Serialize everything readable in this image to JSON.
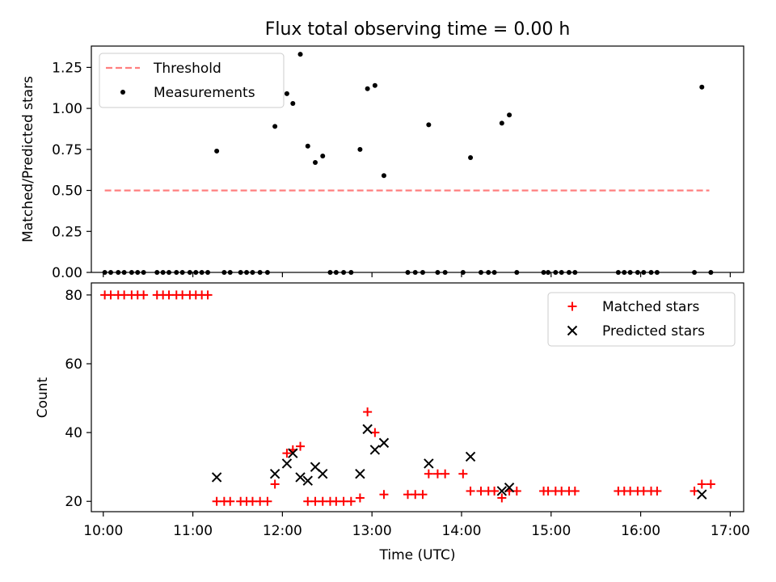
{
  "chart_data": [
    {
      "type": "scatter",
      "title": "Flux total observing time = 0.00 h",
      "xlabel": "",
      "ylabel": "Matched/Predicted stars",
      "xlim": [
        "09:52",
        "17:09"
      ],
      "ylim": [
        0,
        1.38
      ],
      "yticks": [
        0,
        0.25,
        0.5,
        0.75,
        1.0,
        1.25
      ],
      "ytick_labels": [
        "0.00",
        "0.25",
        "0.50",
        "0.75",
        "1.00",
        "1.25"
      ],
      "xticks": [
        "10:00",
        "11:00",
        "12:00",
        "13:00",
        "14:00",
        "15:00",
        "16:00",
        "17:00"
      ],
      "xtick_labels_shown": false,
      "grid": false,
      "legend": "top-left",
      "series": [
        {
          "name": "Threshold",
          "style": "dashed-line",
          "color": "#ff7f7f",
          "points": [
            [
              "10:01",
              0.5
            ],
            [
              "16:46",
              0.5
            ]
          ]
        },
        {
          "name": "Measurements",
          "style": "dot",
          "color": "#000000",
          "points": [
            [
              "10:01",
              0
            ],
            [
              "10:05",
              0
            ],
            [
              "10:10",
              0
            ],
            [
              "10:14",
              0
            ],
            [
              "10:19",
              0
            ],
            [
              "10:23",
              0
            ],
            [
              "10:27",
              0
            ],
            [
              "10:36",
              0
            ],
            [
              "10:40",
              0
            ],
            [
              "10:44",
              0
            ],
            [
              "10:49",
              0
            ],
            [
              "10:53",
              0
            ],
            [
              "10:58",
              0
            ],
            [
              "11:02",
              0
            ],
            [
              "11:06",
              0
            ],
            [
              "11:10",
              0
            ],
            [
              "11:16",
              0.74
            ],
            [
              "11:21",
              0
            ],
            [
              "11:25",
              0
            ],
            [
              "11:32",
              0
            ],
            [
              "11:36",
              0
            ],
            [
              "11:40",
              0
            ],
            [
              "11:45",
              0
            ],
            [
              "11:50",
              0
            ],
            [
              "11:55",
              0.89
            ],
            [
              "12:03",
              1.09
            ],
            [
              "12:07",
              1.03
            ],
            [
              "12:12",
              1.33
            ],
            [
              "12:17",
              0.77
            ],
            [
              "12:22",
              0.67
            ],
            [
              "12:27",
              0.71
            ],
            [
              "12:32",
              0
            ],
            [
              "12:36",
              0
            ],
            [
              "12:41",
              0
            ],
            [
              "12:46",
              0
            ],
            [
              "12:52",
              0.75
            ],
            [
              "12:57",
              1.12
            ],
            [
              "13:02",
              1.14
            ],
            [
              "13:08",
              0.59
            ],
            [
              "13:24",
              0
            ],
            [
              "13:29",
              0
            ],
            [
              "13:34",
              0
            ],
            [
              "13:38",
              0.9
            ],
            [
              "13:44",
              0
            ],
            [
              "13:49",
              0
            ],
            [
              "14:01",
              0
            ],
            [
              "14:06",
              0.7
            ],
            [
              "14:13",
              0
            ],
            [
              "14:18",
              0
            ],
            [
              "14:22",
              0
            ],
            [
              "14:27",
              0.91
            ],
            [
              "14:32",
              0.96
            ],
            [
              "14:37",
              0
            ],
            [
              "14:55",
              0
            ],
            [
              "14:58",
              0
            ],
            [
              "15:03",
              0
            ],
            [
              "15:07",
              0
            ],
            [
              "15:12",
              0
            ],
            [
              "15:16",
              0
            ],
            [
              "15:45",
              0
            ],
            [
              "15:49",
              0
            ],
            [
              "15:53",
              0
            ],
            [
              "15:58",
              0
            ],
            [
              "16:02",
              0
            ],
            [
              "16:07",
              0
            ],
            [
              "16:11",
              0
            ],
            [
              "16:36",
              0
            ],
            [
              "16:41",
              1.13
            ],
            [
              "16:47",
              0
            ]
          ]
        }
      ]
    },
    {
      "type": "scatter",
      "title": "",
      "xlabel": "Time (UTC)",
      "ylabel": "Count",
      "xlim": [
        "09:52",
        "17:09"
      ],
      "ylim": [
        17,
        83.5
      ],
      "yticks": [
        20,
        40,
        60,
        80
      ],
      "ytick_labels": [
        "20",
        "40",
        "60",
        "80"
      ],
      "xticks": [
        "10:00",
        "11:00",
        "12:00",
        "13:00",
        "14:00",
        "15:00",
        "16:00",
        "17:00"
      ],
      "xtick_labels": [
        "10:00",
        "11:00",
        "12:00",
        "13:00",
        "14:00",
        "15:00",
        "16:00",
        "17:00"
      ],
      "grid": false,
      "legend": "top-right",
      "series": [
        {
          "name": "Matched stars",
          "style": "plus",
          "color": "#ff0000",
          "points": [
            [
              "10:01",
              80
            ],
            [
              "10:05",
              80
            ],
            [
              "10:10",
              80
            ],
            [
              "10:14",
              80
            ],
            [
              "10:19",
              80
            ],
            [
              "10:23",
              80
            ],
            [
              "10:27",
              80
            ],
            [
              "10:36",
              80
            ],
            [
              "10:40",
              80
            ],
            [
              "10:44",
              80
            ],
            [
              "10:49",
              80
            ],
            [
              "10:53",
              80
            ],
            [
              "10:58",
              80
            ],
            [
              "11:02",
              80
            ],
            [
              "11:06",
              80
            ],
            [
              "11:10",
              80
            ],
            [
              "11:16",
              20
            ],
            [
              "11:21",
              20
            ],
            [
              "11:25",
              20
            ],
            [
              "11:32",
              20
            ],
            [
              "11:36",
              20
            ],
            [
              "11:40",
              20
            ],
            [
              "11:45",
              20
            ],
            [
              "11:50",
              20
            ],
            [
              "11:55",
              25
            ],
            [
              "12:03",
              34
            ],
            [
              "12:07",
              35
            ],
            [
              "12:12",
              36
            ],
            [
              "12:17",
              20
            ],
            [
              "12:22",
              20
            ],
            [
              "12:27",
              20
            ],
            [
              "12:32",
              20
            ],
            [
              "12:36",
              20
            ],
            [
              "12:41",
              20
            ],
            [
              "12:46",
              20
            ],
            [
              "12:52",
              21
            ],
            [
              "12:57",
              46
            ],
            [
              "13:02",
              40
            ],
            [
              "13:08",
              22
            ],
            [
              "13:24",
              22
            ],
            [
              "13:29",
              22
            ],
            [
              "13:34",
              22
            ],
            [
              "13:38",
              28
            ],
            [
              "13:44",
              28
            ],
            [
              "13:49",
              28
            ],
            [
              "14:01",
              28
            ],
            [
              "14:06",
              23
            ],
            [
              "14:13",
              23
            ],
            [
              "14:18",
              23
            ],
            [
              "14:22",
              23
            ],
            [
              "14:27",
              21
            ],
            [
              "14:32",
              23
            ],
            [
              "14:37",
              23
            ],
            [
              "14:55",
              23
            ],
            [
              "14:58",
              23
            ],
            [
              "15:03",
              23
            ],
            [
              "15:07",
              23
            ],
            [
              "15:12",
              23
            ],
            [
              "15:16",
              23
            ],
            [
              "15:45",
              23
            ],
            [
              "15:49",
              23
            ],
            [
              "15:53",
              23
            ],
            [
              "15:58",
              23
            ],
            [
              "16:02",
              23
            ],
            [
              "16:07",
              23
            ],
            [
              "16:11",
              23
            ],
            [
              "16:36",
              23
            ],
            [
              "16:41",
              25
            ],
            [
              "16:47",
              25
            ]
          ]
        },
        {
          "name": "Predicted stars",
          "style": "x",
          "color": "#000000",
          "points": [
            [
              "11:16",
              27
            ],
            [
              "11:55",
              28
            ],
            [
              "12:03",
              31
            ],
            [
              "12:07",
              34
            ],
            [
              "12:12",
              27
            ],
            [
              "12:17",
              26
            ],
            [
              "12:22",
              30
            ],
            [
              "12:27",
              28
            ],
            [
              "12:52",
              28
            ],
            [
              "12:57",
              41
            ],
            [
              "13:02",
              35
            ],
            [
              "13:08",
              37
            ],
            [
              "13:38",
              31
            ],
            [
              "14:06",
              33
            ],
            [
              "14:27",
              23
            ],
            [
              "14:32",
              24
            ],
            [
              "16:41",
              22
            ]
          ]
        }
      ]
    }
  ]
}
